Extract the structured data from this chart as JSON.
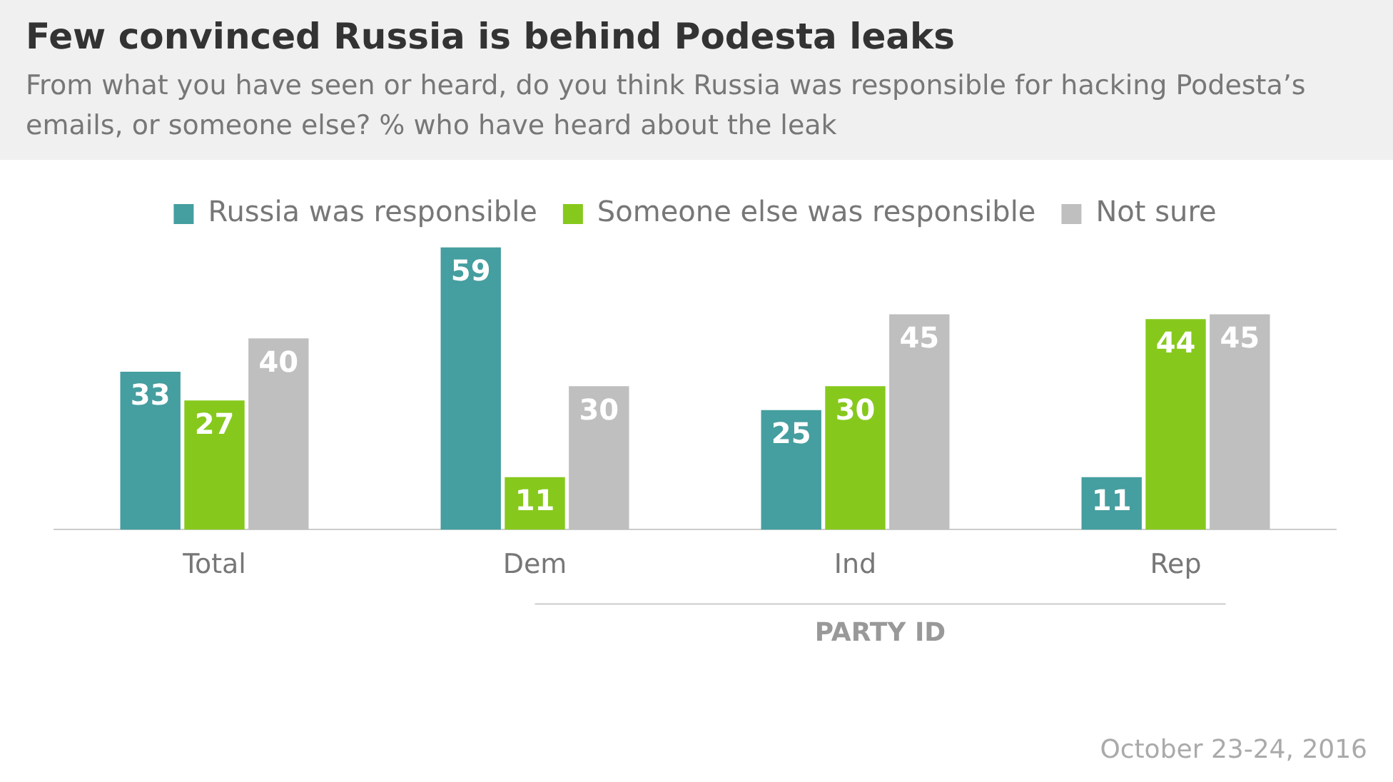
{
  "chart_data": {
    "type": "bar",
    "title": "Few convinced Russia is behind Podesta leaks",
    "subtitle": "From what you have seen or heard, do you think Russia was responsible for hacking Podesta’s emails, or someone else? % who have heard about the leak",
    "categories": [
      "Total",
      "Dem",
      "Ind",
      "Rep"
    ],
    "series": [
      {
        "name": "Russia was responsible",
        "color": "#459e9f",
        "values": [
          33,
          59,
          25,
          11
        ]
      },
      {
        "name": "Someone else was responsible",
        "color": "#86c91c",
        "values": [
          27,
          11,
          30,
          44
        ]
      },
      {
        "name": "Not sure",
        "color": "#bfbfbf",
        "values": [
          40,
          30,
          45,
          45
        ]
      }
    ],
    "data_labels": true,
    "legend": "top",
    "grid": false,
    "annotations": [
      "PARTY ID",
      "October 23-24, 2016"
    ]
  }
}
